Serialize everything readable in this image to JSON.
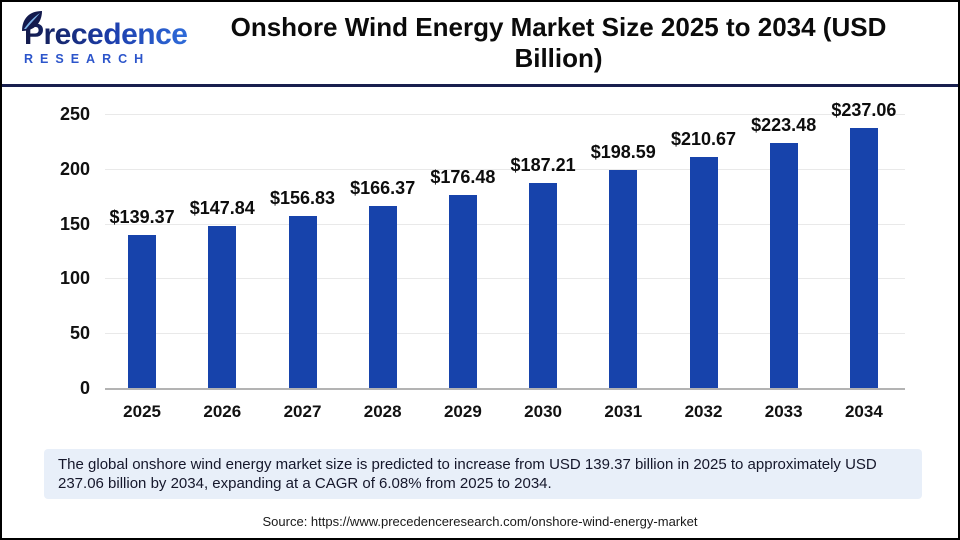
{
  "header": {
    "logo": {
      "line1": "Precedence",
      "line2": "RESEARCH"
    },
    "title": "Onshore Wind Energy Market Size 2025 to 2034 (USD Billion)"
  },
  "chart_data": {
    "type": "bar",
    "title": "Onshore Wind Energy Market Size 2025 to 2034 (USD Billion)",
    "categories": [
      "2025",
      "2026",
      "2027",
      "2028",
      "2029",
      "2030",
      "2031",
      "2032",
      "2033",
      "2034"
    ],
    "values": [
      139.37,
      147.84,
      156.83,
      166.37,
      176.48,
      187.21,
      198.59,
      210.67,
      223.48,
      237.06
    ],
    "currency_prefix": "$",
    "xlabel": "",
    "ylabel": "",
    "ylim": [
      0,
      250
    ],
    "y_ticks": [
      0,
      50,
      100,
      150,
      200,
      250
    ],
    "grid": true,
    "legend": "none",
    "bar_color": "#1743ab"
  },
  "colors": {
    "bar_blue": "#1743ab",
    "divider_navy": "#181f4e",
    "callout_background": "#e8eff9",
    "logo_blue": "#2c55cb",
    "frame_border": "#000000"
  },
  "footer": {
    "summary": "The global onshore wind energy market size is predicted to increase from USD 139.37 billion in 2025 to approximately USD 237.06 billion by 2034, expanding at a CAGR of 6.08% from 2025 to 2034.",
    "source": "Source: https://www.precedenceresearch.com/onshore-wind-energy-market"
  }
}
